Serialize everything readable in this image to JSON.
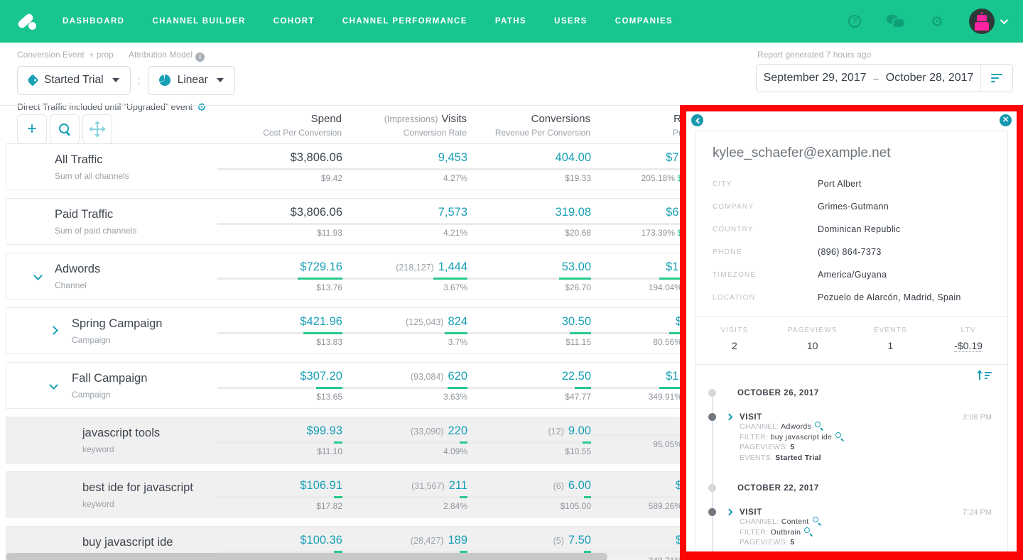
{
  "colors": {
    "nav_green": "#18c48f",
    "icon_dark_green": "#10a077",
    "teal_accent": "#189fb4",
    "bar_green": "#29c98b",
    "dark_text": "#3e454e",
    "gray_text": "#9aa1a8",
    "keyword_row_bg": "#f0f0f1",
    "highlight_red": "#fb0505",
    "avatar_pink": "#ff22a1"
  },
  "nav": {
    "items": [
      "DASHBOARD",
      "CHANNEL BUILDER",
      "COHORT",
      "CHANNEL PERFORMANCE",
      "PATHS",
      "USERS",
      "COMPANIES"
    ],
    "right_icons": [
      "help-icon",
      "chat-icon",
      "gear-icon",
      "avatar",
      "caret-down-icon"
    ]
  },
  "filters": {
    "conversion_event_label": "Conversion Event",
    "add_prop_label": "+ prop",
    "conversion_event_value": "Started Trial",
    "separator": ":",
    "attribution_model_label": "Attribution Model",
    "attribution_model_value": "Linear",
    "direct_traffic_note": "Direct Traffic included until “Upgraded” event",
    "report_generated": "Report generated 7 hours ago",
    "date_range": {
      "start": "September 29, 2017",
      "separator": "–",
      "end": "October 28, 2017"
    }
  },
  "toolbar": {
    "buttons": [
      "add-row-button",
      "search-button",
      "move-button"
    ]
  },
  "table": {
    "columns": [
      {
        "title": "Spend",
        "subtitle": "Cost Per Conversion"
      },
      {
        "title_prefix": "(Impressions)",
        "title": "Visits",
        "subtitle": "Conversion Rate"
      },
      {
        "title": "Conversions",
        "subtitle": "Revenue Per Conversion"
      },
      {
        "title": "R",
        "subtitle": "Pr"
      }
    ],
    "rows": [
      {
        "name": "All Traffic",
        "subtitle": "Sum of all channels",
        "level": 1,
        "expander": "none",
        "gray": false,
        "cells": [
          {
            "primary": "$3,806.06",
            "dark": true,
            "secondary": "$9.42",
            "bar": 0
          },
          {
            "primary": "9,453",
            "secondary": "4.27%",
            "bar": 0
          },
          {
            "primary": "404.00",
            "secondary": "$19.33",
            "bar": 0
          },
          {
            "primary": "$7,",
            "secondary": "205.18%",
            "secondary_suffix": " $",
            "bar": 0
          }
        ]
      },
      {
        "name": "Paid Traffic",
        "subtitle": "Sum of paid channels",
        "level": 1,
        "expander": "none",
        "gray": false,
        "cells": [
          {
            "primary": "$3,806.06",
            "dark": true,
            "secondary": "$11.93",
            "bar": 0
          },
          {
            "primary": "7,573",
            "secondary": "4.21%",
            "bar": 0
          },
          {
            "primary": "319.08",
            "secondary": "$20.68",
            "bar": 0
          },
          {
            "primary": "$6,",
            "secondary": "173.39%",
            "secondary_suffix": " $",
            "bar": 0
          }
        ]
      },
      {
        "name": "Adwords",
        "subtitle": "Channel",
        "level": 1,
        "expander": "down",
        "gray": false,
        "cells": [
          {
            "primary": "$729.16",
            "secondary": "$13.76",
            "bar": 0.36
          },
          {
            "prefix": "(218,127)",
            "primary": "1,444",
            "secondary": "3.67%",
            "bar": 0.27
          },
          {
            "primary": "53.00",
            "secondary": "$26.70",
            "bar": 0.26
          },
          {
            "primary": "$1,",
            "secondary": "194.04%",
            "bar": 0.45
          }
        ]
      },
      {
        "name": "Spring Campaign",
        "subtitle": "Campaign",
        "level": 2,
        "expander": "right",
        "gray": false,
        "cells": [
          {
            "primary": "$421.96",
            "secondary": "$13.83",
            "bar": 0.31
          },
          {
            "prefix": "(125,043)",
            "primary": "824",
            "secondary": "3.7%",
            "bar": 0.18
          },
          {
            "primary": "30.50",
            "secondary": "$11.15",
            "bar": 0.17
          },
          {
            "primary": "$",
            "secondary": "80.56%",
            "bar": 0.37
          }
        ]
      },
      {
        "name": "Fall Campaign",
        "subtitle": "Campaign",
        "level": 2,
        "expander": "down",
        "gray": false,
        "cells": [
          {
            "primary": "$307.20",
            "secondary": "$13.65",
            "bar": 0.21
          },
          {
            "prefix": "(93,084)",
            "primary": "620",
            "secondary": "3.63%",
            "bar": 0.16
          },
          {
            "primary": "22.50",
            "secondary": "$47.77",
            "bar": 0.13
          },
          {
            "primary": "$1,",
            "secondary": "349.91%",
            "bar": 0.45
          }
        ]
      },
      {
        "name": "javascript tools",
        "subtitle": "keyword",
        "level": 3,
        "expander": "none",
        "gray": true,
        "cells": [
          {
            "primary": "$99.93",
            "secondary": "$11.10",
            "bar": 0.07
          },
          {
            "prefix": "(33,090)",
            "primary": "220",
            "secondary": "4.09%",
            "bar": 0.06
          },
          {
            "prefix": "(12)",
            "primary": "9.00",
            "secondary": "$10.55",
            "bar": 0.07
          },
          {
            "primary": "",
            "secondary": "95.05%",
            "bar": 0.15
          }
        ]
      },
      {
        "name": "best ide for javascript",
        "subtitle": "keyword",
        "level": 3,
        "expander": "none",
        "gray": true,
        "cells": [
          {
            "primary": "$106.91",
            "secondary": "$17.82",
            "bar": 0.07
          },
          {
            "prefix": "(31,567)",
            "primary": "211",
            "secondary": "2.84%",
            "bar": 0.06
          },
          {
            "prefix": "(6)",
            "primary": "6.00",
            "secondary": "$105.00",
            "bar": 0.06
          },
          {
            "primary": "$",
            "secondary": "589.26%",
            "bar": 0.15
          }
        ]
      },
      {
        "name": "buy javascript ide",
        "subtitle": "keyword",
        "level": 3,
        "expander": "none",
        "gray": true,
        "cells": [
          {
            "primary": "$100.36",
            "secondary": "$13.38",
            "bar": 0.07
          },
          {
            "prefix": "(28,427)",
            "primary": "189",
            "secondary": "3.97%",
            "bar": 0.06
          },
          {
            "prefix": "(5)",
            "primary": "7.50",
            "secondary": "$46.66",
            "bar": 0.06
          },
          {
            "primary": "$",
            "secondary": "348.71%",
            "bar": 0.15
          }
        ]
      }
    ]
  },
  "panel": {
    "email": "kylee_schaefer@example.net",
    "details": [
      {
        "label": "CITY",
        "value": "Port Albert"
      },
      {
        "label": "COMPANY",
        "value": "Grimes-Gutmann"
      },
      {
        "label": "COUNTRY",
        "value": "Dominican Republic"
      },
      {
        "label": "PHONE",
        "value": "(896) 864-7373"
      },
      {
        "label": "TIMEZONE",
        "value": "America/Guyana"
      },
      {
        "label": "LOCATION",
        "value": "Pozuelo de Alarcón, Madrid, Spain"
      }
    ],
    "stats": [
      {
        "label": "VISITS",
        "value": "2"
      },
      {
        "label": "PAGEVIEWS",
        "value": "10"
      },
      {
        "label": "EVENTS",
        "value": "1"
      },
      {
        "label": "LTV",
        "value": "-$0.19",
        "underlined": true
      }
    ],
    "timeline": [
      {
        "type": "date",
        "text": "OCTOBER 26, 2017"
      },
      {
        "type": "visit",
        "title": "VISIT",
        "time": "3:08 PM",
        "details": [
          {
            "label": "CHANNEL:",
            "value": "Adwords",
            "zoom_icon": true
          },
          {
            "label": "FILTER:",
            "value": "buy javascript ide",
            "zoom_icon": true
          },
          {
            "label": "PAGEVIEWS:",
            "value": "5",
            "bold": true
          },
          {
            "label": "EVENTS:",
            "value": "Started Trial",
            "bold": true
          }
        ]
      },
      {
        "type": "date",
        "text": "OCTOBER 22, 2017"
      },
      {
        "type": "visit",
        "title": "VISIT",
        "time": "7:24 PM",
        "details": [
          {
            "label": "CHANNEL:",
            "value": "Content",
            "zoom_icon": true
          },
          {
            "label": "FILTER:",
            "value": "Outbrain",
            "zoom_icon": true
          },
          {
            "label": "PAGEVIEWS:",
            "value": "5",
            "bold": true
          }
        ]
      }
    ]
  }
}
